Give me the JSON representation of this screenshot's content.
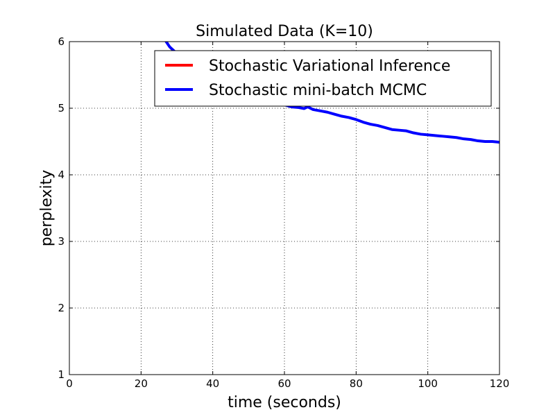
{
  "chart_data": {
    "type": "line",
    "title": "Simulated Data (K=10)",
    "xlabel": "time (seconds)",
    "ylabel": "perplexity",
    "xlim": [
      0,
      120
    ],
    "ylim": [
      1,
      6
    ],
    "xticks": [
      "0",
      "20",
      "40",
      "60",
      "80",
      "100",
      "120"
    ],
    "yticks": [
      "1",
      "2",
      "3",
      "4",
      "5",
      "6"
    ],
    "grid": true,
    "legend_position": "top-right",
    "series": [
      {
        "name": "Stochastic Variational Inference",
        "color": "#ff0000",
        "x": [],
        "y": []
      },
      {
        "name": "Stochastic mini-batch MCMC",
        "color": "#0000ff",
        "x": [
          27.0,
          28.0,
          30.0,
          32.0,
          35.0,
          38.0,
          42.0,
          46.0,
          50.0,
          54.0,
          58.0,
          60.0,
          62.0,
          64.0,
          65.5,
          66.5,
          68.0,
          70.0,
          72.0,
          74.0,
          76.0,
          78.0,
          80.0,
          82.0,
          84.0,
          86.0,
          88.0,
          90.0,
          92.0,
          94.0,
          96.0,
          98.0,
          100.0,
          102.0,
          104.0,
          106.0,
          108.0,
          110.0,
          112.0,
          114.0,
          116.0,
          118.0,
          120.0
        ],
        "y": [
          6.0,
          5.92,
          5.82,
          5.72,
          5.6,
          5.48,
          5.36,
          5.26,
          5.17,
          5.1,
          5.06,
          5.05,
          5.02,
          5.01,
          4.995,
          5.02,
          4.98,
          4.96,
          4.94,
          4.91,
          4.88,
          4.86,
          4.83,
          4.79,
          4.76,
          4.74,
          4.71,
          4.68,
          4.67,
          4.66,
          4.63,
          4.61,
          4.6,
          4.59,
          4.58,
          4.57,
          4.56,
          4.54,
          4.53,
          4.51,
          4.5,
          4.5,
          4.49
        ]
      }
    ]
  }
}
